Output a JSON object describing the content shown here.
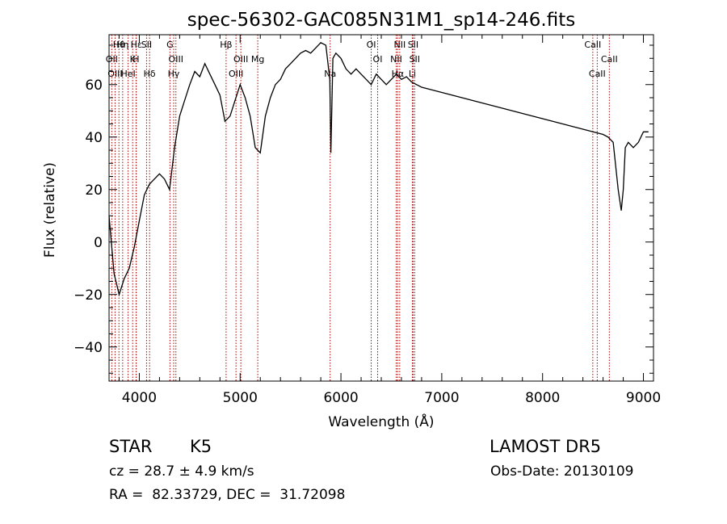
{
  "chart_data": {
    "type": "line",
    "title": "spec-56302-GAC085N31M1_sp14-246.fits",
    "xlabel": "Wavelength (Å)",
    "ylabel": "Flux (relative)",
    "xlim": [
      3700,
      9100
    ],
    "ylim": [
      -53,
      79
    ],
    "x_ticks": [
      4000,
      5000,
      6000,
      7000,
      8000,
      9000
    ],
    "y_ticks": [
      -40,
      -20,
      0,
      20,
      40,
      60
    ],
    "grid": false,
    "series": [
      {
        "color": "#000000",
        "x": [
          3700,
          3750,
          3800,
          3850,
          3900,
          3950,
          4000,
          4050,
          4100,
          4150,
          4200,
          4250,
          4300,
          4350,
          4400,
          4450,
          4500,
          4550,
          4600,
          4650,
          4700,
          4750,
          4800,
          4850,
          4900,
          4950,
          5000,
          5050,
          5100,
          5150,
          5200,
          5250,
          5300,
          5350,
          5400,
          5450,
          5500,
          5550,
          5600,
          5650,
          5700,
          5750,
          5800,
          5850,
          5890,
          5900,
          5920,
          5950,
          6000,
          6050,
          6100,
          6150,
          6200,
          6250,
          6300,
          6350,
          6400,
          6450,
          6500,
          6550,
          6600,
          6650,
          6700,
          6750,
          6800,
          6900,
          7000,
          7100,
          7200,
          7300,
          7400,
          7500,
          7600,
          7700,
          7800,
          7900,
          8000,
          8100,
          8200,
          8300,
          8400,
          8500,
          8600,
          8650,
          8700,
          8750,
          8780,
          8800,
          8820,
          8850,
          8900,
          8950,
          9000,
          9050
        ],
        "y": [
          10,
          -12,
          -20,
          -14,
          -10,
          -2,
          8,
          18,
          22,
          24,
          26,
          24,
          20,
          36,
          48,
          54,
          60,
          65,
          63,
          68,
          64,
          60,
          56,
          46,
          48,
          54,
          60,
          55,
          48,
          36,
          34,
          48,
          55,
          60,
          62,
          66,
          68,
          70,
          72,
          73,
          72,
          74,
          76,
          75,
          62,
          34,
          70,
          72,
          70,
          66,
          64,
          66,
          64,
          62,
          60,
          64,
          62,
          60,
          62,
          64,
          62,
          63,
          61,
          60,
          59,
          58,
          57,
          56,
          55,
          54,
          53,
          52,
          51,
          50,
          49,
          48,
          47,
          46,
          45,
          44,
          43,
          42,
          41,
          40,
          38,
          20,
          12,
          20,
          36,
          38,
          36,
          38,
          42,
          42
        ]
      }
    ],
    "lines": [
      {
        "label": "Hθ",
        "wavelength": 3798
      },
      {
        "label": "OII",
        "wavelength": 3727
      },
      {
        "label": "OIII",
        "wavelength": 3760
      },
      {
        "label": "Hη",
        "wavelength": 3835
      },
      {
        "label": "K",
        "wavelength": 3934
      },
      {
        "label": "HeI",
        "wavelength": 3889
      },
      {
        "label": "Hε",
        "wavelength": 3970
      },
      {
        "label": "H",
        "wavelength": 3968
      },
      {
        "label": "Hδ",
        "wavelength": 4102
      },
      {
        "label": "SII",
        "wavelength": 4072
      },
      {
        "label": "OIII",
        "wavelength": 4363
      },
      {
        "label": "Hγ",
        "wavelength": 4341
      },
      {
        "label": "G",
        "wavelength": 4304
      },
      {
        "label": "OIII",
        "wavelength": 5007
      },
      {
        "label": "OIII",
        "wavelength": 4959
      },
      {
        "label": "Hβ",
        "wavelength": 4861
      },
      {
        "label": "Mg",
        "wavelength": 5175
      },
      {
        "label": "Na",
        "wavelength": 5893
      },
      {
        "label": "OI",
        "wavelength": 6300
      },
      {
        "label": "OI",
        "wavelength": 6364
      },
      {
        "label": "Hα",
        "wavelength": 6563
      },
      {
        "label": "SII",
        "wavelength": 6716
      },
      {
        "label": "NII",
        "wavelength": 6548
      },
      {
        "label": "Li",
        "wavelength": 6708
      },
      {
        "label": "NII",
        "wavelength": 6583
      },
      {
        "label": "SII",
        "wavelength": 6731
      },
      {
        "label": "CaII",
        "wavelength": 8542
      },
      {
        "label": "CaII",
        "wavelength": 8498
      },
      {
        "label": "CaII",
        "wavelength": 8662
      }
    ]
  },
  "info": {
    "object_class": "STAR",
    "subclass": "K5",
    "survey": "LAMOST DR5",
    "redshift": "cz = 28.7 ± 4.9 km/s",
    "obs_date": "Obs-Date: 20130109",
    "coords": "RA =  82.33729, DEC =  31.72098"
  }
}
